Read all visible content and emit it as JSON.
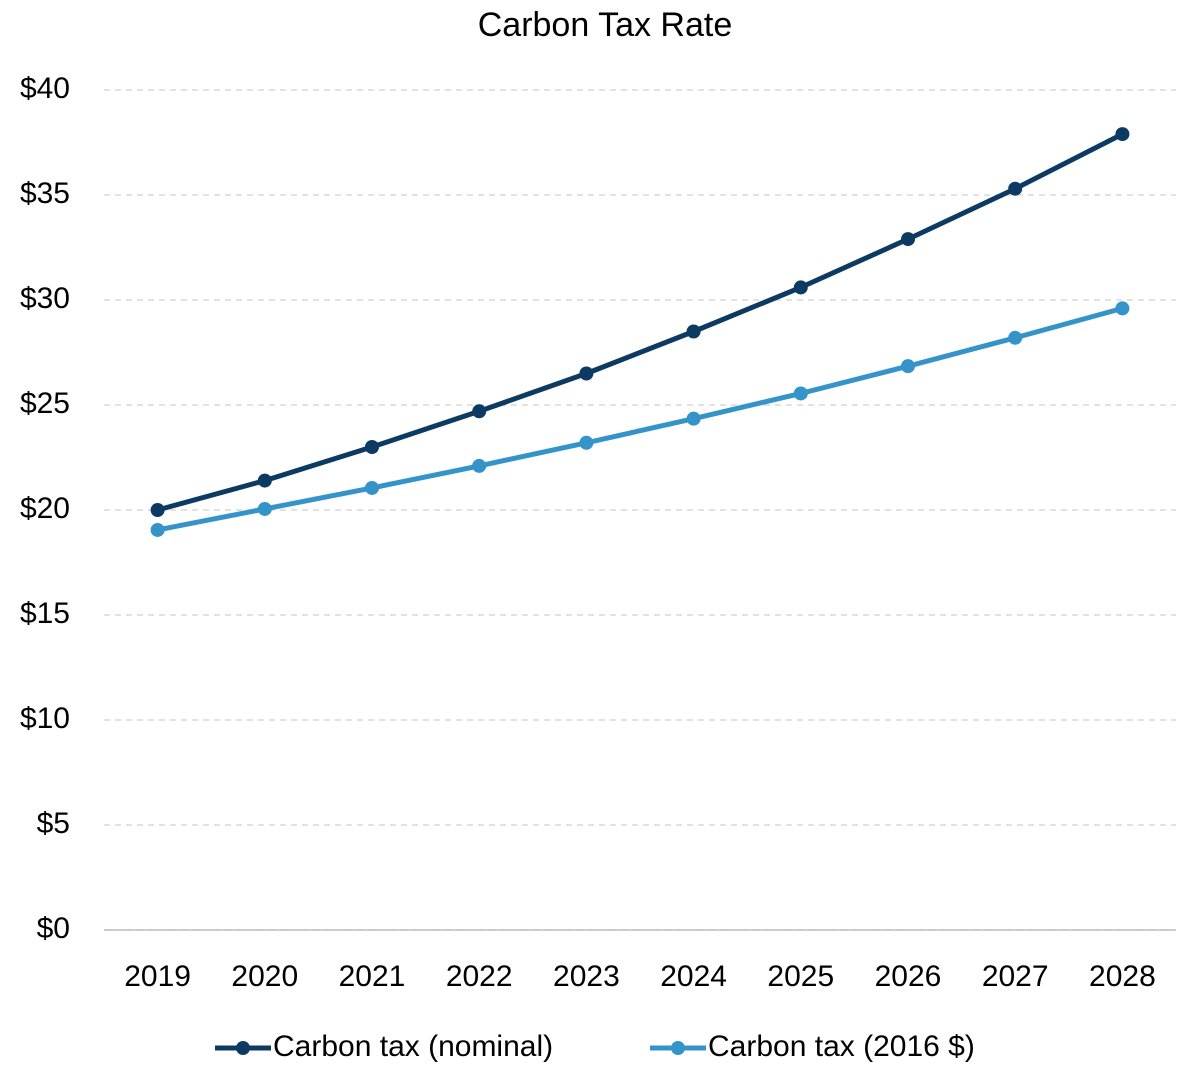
{
  "chart_data": {
    "type": "line",
    "title": "Carbon Tax Rate",
    "categories": [
      "2019",
      "2020",
      "2021",
      "2022",
      "2023",
      "2024",
      "2025",
      "2026",
      "2027",
      "2028"
    ],
    "series": [
      {
        "name": "Carbon tax (nominal)",
        "color": "#0d3a62",
        "values": [
          20.0,
          21.4,
          23.0,
          24.7,
          26.5,
          28.5,
          30.6,
          32.9,
          35.3,
          37.9
        ]
      },
      {
        "name": "Carbon tax (2016 $)",
        "color": "#3494c9",
        "values": [
          19.05,
          20.05,
          21.05,
          22.1,
          23.2,
          24.35,
          25.55,
          26.85,
          28.2,
          29.6
        ]
      }
    ],
    "ylim": [
      0,
      40
    ],
    "yticks": [
      {
        "value": 0,
        "label": "$0"
      },
      {
        "value": 5,
        "label": "$5"
      },
      {
        "value": 10,
        "label": "$10"
      },
      {
        "value": 15,
        "label": "$15"
      },
      {
        "value": 20,
        "label": "$20"
      },
      {
        "value": 25,
        "label": "$25"
      },
      {
        "value": 30,
        "label": "$30"
      },
      {
        "value": 35,
        "label": "$35"
      },
      {
        "value": 40,
        "label": "$40"
      }
    ],
    "grid": true,
    "legend": "bottom"
  }
}
